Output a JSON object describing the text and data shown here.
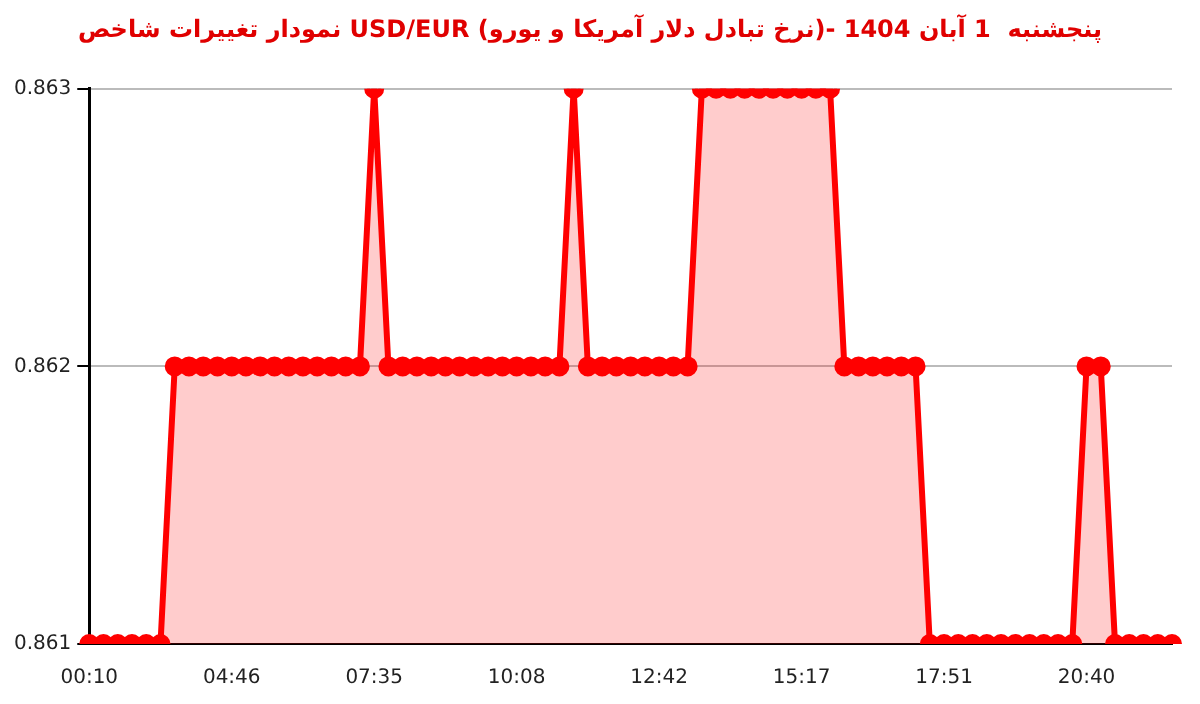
{
  "chart_data": {
    "type": "area",
    "title": "نمودار تغییرات شاخص USD/EUR (نرخ تبادل دلار آمریکا و یورو)- پنجشنبه  1 آبان 1404",
    "categories": [
      "00:10",
      null,
      null,
      null,
      null,
      null,
      null,
      null,
      null,
      null,
      "04:46",
      null,
      null,
      null,
      null,
      null,
      null,
      null,
      null,
      null,
      "07:35",
      null,
      null,
      null,
      null,
      null,
      null,
      null,
      null,
      null,
      "10:08",
      null,
      null,
      null,
      null,
      null,
      null,
      null,
      null,
      null,
      "12:42",
      null,
      null,
      null,
      null,
      null,
      null,
      null,
      null,
      null,
      "15:17",
      null,
      null,
      null,
      null,
      null,
      null,
      null,
      null,
      null,
      "17:51",
      null,
      null,
      null,
      null,
      null,
      null,
      null,
      null,
      null,
      "20:40",
      null,
      null,
      null,
      null,
      null,
      null
    ],
    "series": [
      {
        "color": "#ff0000",
        "values": [
          0.861,
          0.861,
          0.861,
          0.861,
          0.861,
          0.861,
          0.862,
          0.862,
          0.862,
          0.862,
          0.862,
          0.862,
          0.862,
          0.862,
          0.862,
          0.862,
          0.862,
          0.862,
          0.862,
          0.862,
          0.863,
          0.862,
          0.862,
          0.862,
          0.862,
          0.862,
          0.862,
          0.862,
          0.862,
          0.862,
          0.862,
          0.862,
          0.862,
          0.862,
          0.863,
          0.862,
          0.862,
          0.862,
          0.862,
          0.862,
          0.862,
          0.862,
          0.862,
          0.863,
          0.863,
          0.863,
          0.863,
          0.863,
          0.863,
          0.863,
          0.863,
          0.863,
          0.863,
          0.862,
          0.862,
          0.862,
          0.862,
          0.862,
          0.862,
          0.861,
          0.861,
          0.861,
          0.861,
          0.861,
          0.861,
          0.861,
          0.861,
          0.861,
          0.861,
          0.861,
          0.862,
          0.862,
          0.861,
          0.861,
          0.861,
          0.861,
          0.861
        ]
      }
    ],
    "ylim": [
      0.861,
      0.863
    ],
    "yticks": [
      0.861,
      0.862,
      0.863
    ],
    "grid": "y",
    "marker": "circle",
    "legend": false
  }
}
